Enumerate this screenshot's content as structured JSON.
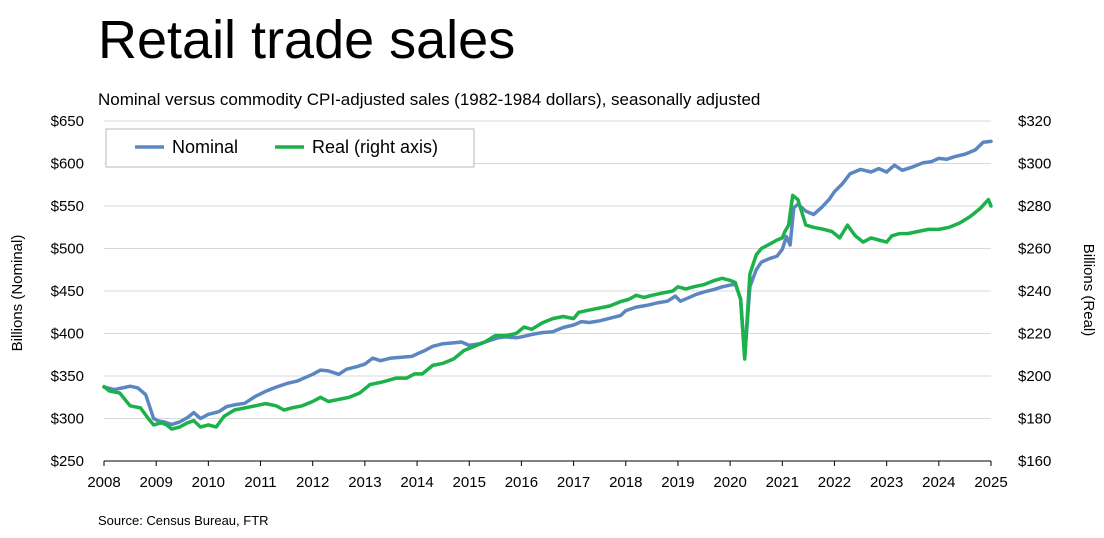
{
  "chart_data": {
    "type": "line",
    "title": "Retail trade sales",
    "subtitle": "Nominal versus commodity CPI-adjusted sales (1982-1984 dollars), seasonally adjusted",
    "source": "Source: Census Bureau, FTR",
    "xlim": [
      2008,
      2025
    ],
    "x_ticks": [
      "2008",
      "2009",
      "2010",
      "2011",
      "2012",
      "2013",
      "2014",
      "2015",
      "2016",
      "2017",
      "2018",
      "2019",
      "2020",
      "2021",
      "2022",
      "2023",
      "2024",
      "2025"
    ],
    "y_left": {
      "label": "Billions (Nominal)",
      "ylim": [
        250,
        650
      ],
      "ticks": [
        250,
        300,
        350,
        400,
        450,
        500,
        550,
        600,
        650
      ],
      "tick_labels": [
        "$250",
        "$300",
        "$350",
        "$400",
        "$450",
        "$500",
        "$550",
        "$600",
        "$650"
      ]
    },
    "y_right": {
      "label": "Billions (Real)",
      "ylim": [
        160,
        320
      ],
      "ticks": [
        160,
        180,
        200,
        220,
        240,
        260,
        280,
        300,
        320
      ],
      "tick_labels": [
        "$160",
        "$180",
        "$200",
        "$220",
        "$240",
        "$260",
        "$280",
        "$300",
        "$320"
      ]
    },
    "grid": true,
    "legend_position": "top-left",
    "series": [
      {
        "name": "Nominal",
        "axis": "left",
        "color": "#5B86C2",
        "points": [
          [
            2008.0,
            337
          ],
          [
            2008.2,
            334
          ],
          [
            2008.35,
            336
          ],
          [
            2008.5,
            338
          ],
          [
            2008.65,
            336
          ],
          [
            2008.8,
            328
          ],
          [
            2008.95,
            300
          ],
          [
            2009.05,
            297
          ],
          [
            2009.15,
            296
          ],
          [
            2009.3,
            293
          ],
          [
            2009.45,
            296
          ],
          [
            2009.6,
            301
          ],
          [
            2009.72,
            307
          ],
          [
            2009.85,
            300
          ],
          [
            2010.0,
            305
          ],
          [
            2010.2,
            308
          ],
          [
            2010.35,
            314
          ],
          [
            2010.5,
            316
          ],
          [
            2010.7,
            318
          ],
          [
            2010.9,
            326
          ],
          [
            2011.1,
            332
          ],
          [
            2011.3,
            337
          ],
          [
            2011.5,
            341
          ],
          [
            2011.7,
            344
          ],
          [
            2011.85,
            348
          ],
          [
            2012.0,
            352
          ],
          [
            2012.15,
            357
          ],
          [
            2012.3,
            356
          ],
          [
            2012.5,
            352
          ],
          [
            2012.65,
            358
          ],
          [
            2012.85,
            361
          ],
          [
            2013.0,
            364
          ],
          [
            2013.15,
            371
          ],
          [
            2013.3,
            368
          ],
          [
            2013.5,
            371
          ],
          [
            2013.7,
            372
          ],
          [
            2013.9,
            373
          ],
          [
            2014.0,
            376
          ],
          [
            2014.15,
            380
          ],
          [
            2014.3,
            385
          ],
          [
            2014.5,
            388
          ],
          [
            2014.7,
            389
          ],
          [
            2014.85,
            390
          ],
          [
            2015.0,
            386
          ],
          [
            2015.2,
            388
          ],
          [
            2015.4,
            392
          ],
          [
            2015.55,
            395
          ],
          [
            2015.7,
            396
          ],
          [
            2015.9,
            395
          ],
          [
            2016.0,
            396
          ],
          [
            2016.2,
            399
          ],
          [
            2016.4,
            401
          ],
          [
            2016.6,
            402
          ],
          [
            2016.8,
            407
          ],
          [
            2017.0,
            410
          ],
          [
            2017.15,
            414
          ],
          [
            2017.3,
            413
          ],
          [
            2017.5,
            415
          ],
          [
            2017.7,
            418
          ],
          [
            2017.9,
            421
          ],
          [
            2018.0,
            427
          ],
          [
            2018.2,
            431
          ],
          [
            2018.4,
            433
          ],
          [
            2018.6,
            436
          ],
          [
            2018.8,
            438
          ],
          [
            2018.95,
            444
          ],
          [
            2019.05,
            438
          ],
          [
            2019.2,
            442
          ],
          [
            2019.35,
            446
          ],
          [
            2019.5,
            449
          ],
          [
            2019.7,
            452
          ],
          [
            2019.85,
            455
          ],
          [
            2020.0,
            457
          ],
          [
            2020.1,
            458
          ],
          [
            2020.2,
            441
          ],
          [
            2020.28,
            372
          ],
          [
            2020.38,
            455
          ],
          [
            2020.5,
            475
          ],
          [
            2020.6,
            484
          ],
          [
            2020.75,
            488
          ],
          [
            2020.9,
            491
          ],
          [
            2021.0,
            499
          ],
          [
            2021.08,
            514
          ],
          [
            2021.15,
            504
          ],
          [
            2021.22,
            548
          ],
          [
            2021.3,
            552
          ],
          [
            2021.45,
            544
          ],
          [
            2021.6,
            540
          ],
          [
            2021.75,
            548
          ],
          [
            2021.9,
            558
          ],
          [
            2022.0,
            567
          ],
          [
            2022.15,
            576
          ],
          [
            2022.3,
            588
          ],
          [
            2022.5,
            593
          ],
          [
            2022.7,
            590
          ],
          [
            2022.85,
            594
          ],
          [
            2023.0,
            590
          ],
          [
            2023.15,
            598
          ],
          [
            2023.3,
            592
          ],
          [
            2023.5,
            596
          ],
          [
            2023.7,
            601
          ],
          [
            2023.85,
            602
          ],
          [
            2024.0,
            606
          ],
          [
            2024.15,
            605
          ],
          [
            2024.3,
            608
          ],
          [
            2024.5,
            611
          ],
          [
            2024.7,
            616
          ],
          [
            2024.85,
            625
          ],
          [
            2025.0,
            626
          ]
        ]
      },
      {
        "name": "Real (right axis)",
        "axis": "right",
        "color": "#1CB14A",
        "points": [
          [
            2008.0,
            195
          ],
          [
            2008.1,
            193
          ],
          [
            2008.3,
            192
          ],
          [
            2008.5,
            186
          ],
          [
            2008.7,
            185
          ],
          [
            2008.85,
            180
          ],
          [
            2008.95,
            177
          ],
          [
            2009.1,
            178
          ],
          [
            2009.2,
            177
          ],
          [
            2009.3,
            175
          ],
          [
            2009.45,
            176
          ],
          [
            2009.6,
            178
          ],
          [
            2009.72,
            179
          ],
          [
            2009.85,
            176
          ],
          [
            2010.0,
            177
          ],
          [
            2010.15,
            176
          ],
          [
            2010.3,
            181
          ],
          [
            2010.5,
            184
          ],
          [
            2010.7,
            185
          ],
          [
            2010.9,
            186
          ],
          [
            2011.1,
            187
          ],
          [
            2011.3,
            186
          ],
          [
            2011.45,
            184
          ],
          [
            2011.6,
            185
          ],
          [
            2011.8,
            186
          ],
          [
            2012.0,
            188
          ],
          [
            2012.15,
            190
          ],
          [
            2012.3,
            188
          ],
          [
            2012.5,
            189
          ],
          [
            2012.7,
            190
          ],
          [
            2012.9,
            192
          ],
          [
            2013.1,
            196
          ],
          [
            2013.3,
            197
          ],
          [
            2013.45,
            198
          ],
          [
            2013.6,
            199
          ],
          [
            2013.8,
            199
          ],
          [
            2013.95,
            201
          ],
          [
            2014.1,
            201
          ],
          [
            2014.3,
            205
          ],
          [
            2014.5,
            206
          ],
          [
            2014.7,
            208
          ],
          [
            2014.9,
            212
          ],
          [
            2015.1,
            214
          ],
          [
            2015.3,
            216
          ],
          [
            2015.5,
            219
          ],
          [
            2015.7,
            219
          ],
          [
            2015.9,
            220
          ],
          [
            2016.05,
            223
          ],
          [
            2016.2,
            222
          ],
          [
            2016.4,
            225
          ],
          [
            2016.6,
            227
          ],
          [
            2016.8,
            228
          ],
          [
            2017.0,
            227
          ],
          [
            2017.1,
            230
          ],
          [
            2017.3,
            231
          ],
          [
            2017.5,
            232
          ],
          [
            2017.7,
            233
          ],
          [
            2017.9,
            235
          ],
          [
            2018.05,
            236
          ],
          [
            2018.2,
            238
          ],
          [
            2018.35,
            237
          ],
          [
            2018.5,
            238
          ],
          [
            2018.7,
            239
          ],
          [
            2018.9,
            240
          ],
          [
            2019.0,
            242
          ],
          [
            2019.15,
            241
          ],
          [
            2019.3,
            242
          ],
          [
            2019.5,
            243
          ],
          [
            2019.7,
            245
          ],
          [
            2019.85,
            246
          ],
          [
            2020.0,
            245
          ],
          [
            2020.1,
            244
          ],
          [
            2020.2,
            236
          ],
          [
            2020.28,
            208
          ],
          [
            2020.38,
            248
          ],
          [
            2020.5,
            257
          ],
          [
            2020.6,
            260
          ],
          [
            2020.75,
            262
          ],
          [
            2020.9,
            264
          ],
          [
            2021.0,
            265
          ],
          [
            2021.05,
            268
          ],
          [
            2021.12,
            271
          ],
          [
            2021.2,
            285
          ],
          [
            2021.3,
            283
          ],
          [
            2021.45,
            271
          ],
          [
            2021.6,
            270
          ],
          [
            2021.8,
            269
          ],
          [
            2021.95,
            268
          ],
          [
            2022.1,
            265
          ],
          [
            2022.25,
            271
          ],
          [
            2022.4,
            266
          ],
          [
            2022.55,
            263
          ],
          [
            2022.7,
            265
          ],
          [
            2022.85,
            264
          ],
          [
            2023.0,
            263
          ],
          [
            2023.1,
            266
          ],
          [
            2023.25,
            267
          ],
          [
            2023.4,
            267
          ],
          [
            2023.6,
            268
          ],
          [
            2023.8,
            269
          ],
          [
            2024.0,
            269
          ],
          [
            2024.2,
            270
          ],
          [
            2024.4,
            272
          ],
          [
            2024.6,
            275
          ],
          [
            2024.8,
            279
          ],
          [
            2024.95,
            283
          ],
          [
            2025.0,
            280
          ]
        ]
      }
    ]
  }
}
